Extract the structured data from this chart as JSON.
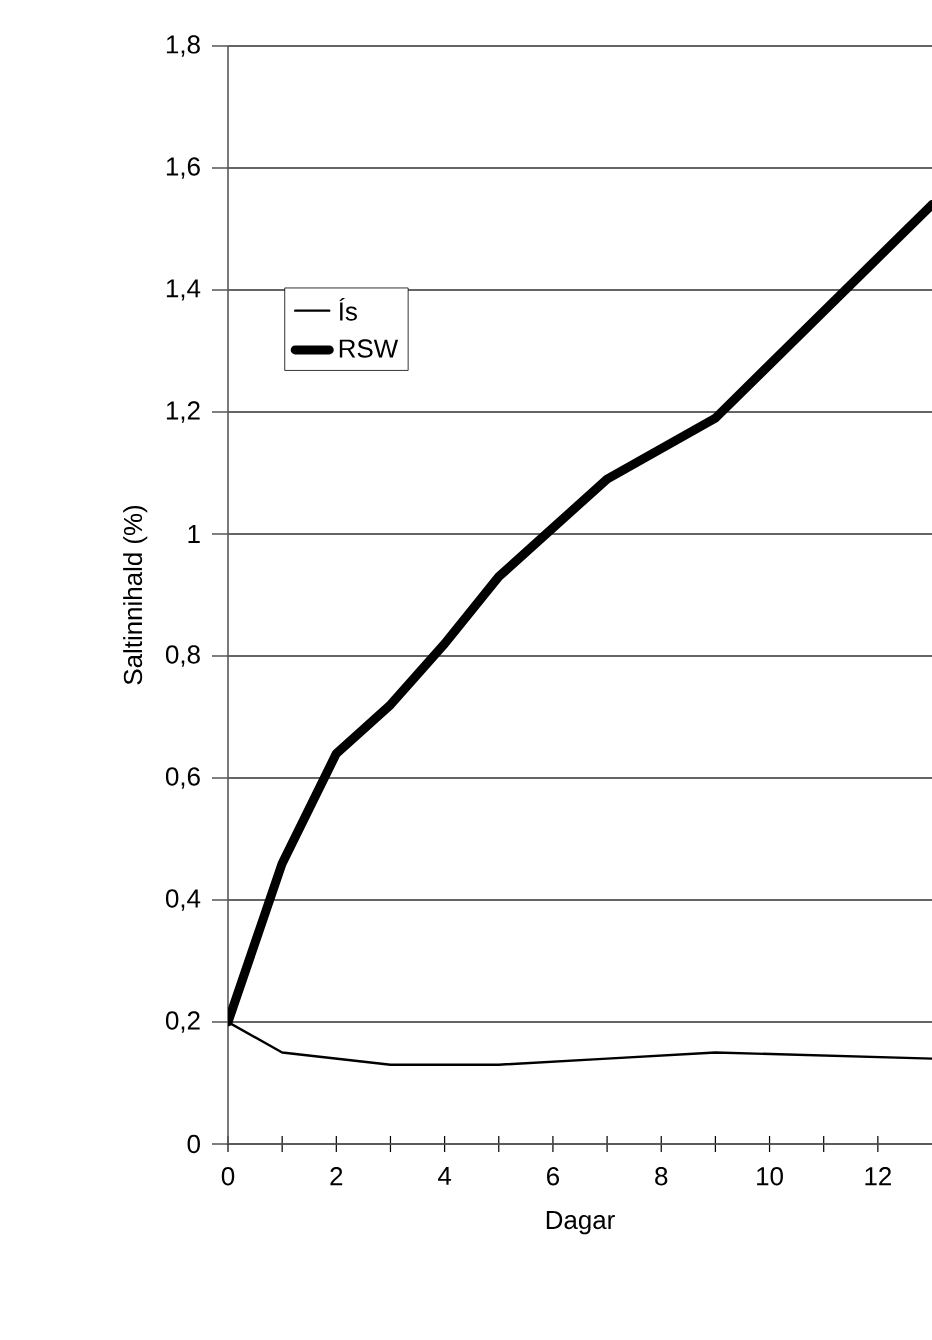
{
  "chart_data": {
    "type": "line",
    "xlabel": "Dagar",
    "ylabel": "Saltinnihald (%)",
    "xlim": [
      0,
      13
    ],
    "ylim": [
      0,
      1.8
    ],
    "xticks": [
      0,
      {
        "value": 1,
        "label": null
      },
      2,
      {
        "value": 3,
        "label": null
      },
      4,
      {
        "value": 5,
        "label": null
      },
      6,
      {
        "value": 7,
        "label": null
      },
      8,
      {
        "value": 9,
        "label": null
      },
      10,
      {
        "value": 11,
        "label": null
      },
      12
    ],
    "yticks": [
      0,
      {
        "value": 0.2,
        "label": "0,2"
      },
      {
        "value": 0.4,
        "label": "0,4"
      },
      {
        "value": 0.6,
        "label": "0,6"
      },
      {
        "value": 0.8,
        "label": "0,8"
      },
      1,
      {
        "value": 1.2,
        "label": "1,2"
      },
      {
        "value": 1.4,
        "label": "1,4"
      },
      {
        "value": 1.6,
        "label": "1,6"
      },
      {
        "value": 1.8,
        "label": "1,8"
      }
    ],
    "grid": "y",
    "legend": "top left",
    "marker": "none",
    "line_style": "solid",
    "series": [
      {
        "name": "Ís",
        "color": "#000000",
        "x": [
          0,
          1,
          3,
          5,
          7,
          9,
          13
        ],
        "values": [
          0.2,
          0.15,
          0.13,
          0.13,
          0.14,
          0.15,
          0.14
        ]
      },
      {
        "name": "RSW",
        "color": "#000000",
        "x": [
          0,
          1,
          2,
          3,
          4,
          5,
          6,
          7,
          8,
          9,
          13
        ],
        "values": [
          0.2,
          0.46,
          0.64,
          0.72,
          0.82,
          0.93,
          1.01,
          1.09,
          1.14,
          1.19,
          1.54
        ]
      }
    ]
  }
}
